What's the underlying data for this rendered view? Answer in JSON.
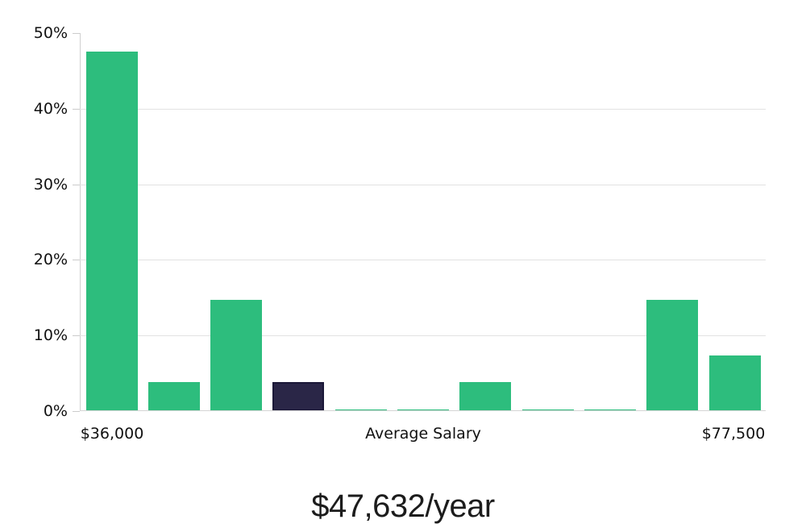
{
  "chart_data": {
    "type": "bar",
    "title": "$47,632/year",
    "xlabel": "",
    "ylabel": "",
    "ylim": [
      0,
      50
    ],
    "grid": "horizontal",
    "legend_position": "none",
    "ytick_labels": [
      "0%",
      "10%",
      "20%",
      "30%",
      "40%",
      "50%"
    ],
    "ytick_values": [
      0,
      10,
      20,
      30,
      40,
      50
    ],
    "gridline_values": [
      10,
      20,
      30,
      40
    ],
    "xtick_labels": [
      "$36,000",
      "Average Salary",
      "$77,500"
    ],
    "values": [
      47.6,
      3.8,
      14.7,
      3.8,
      0.2,
      0.2,
      3.8,
      0.2,
      0.2,
      14.7,
      7.4
    ],
    "highlight_index": 3,
    "colors": {
      "bar": "#2dbd7d",
      "highlight_bar": "#2a2647",
      "highlight_border": "#1b1838",
      "gridline": "#e2e2e2",
      "axis": "#cccccc",
      "text": "#111111"
    }
  }
}
